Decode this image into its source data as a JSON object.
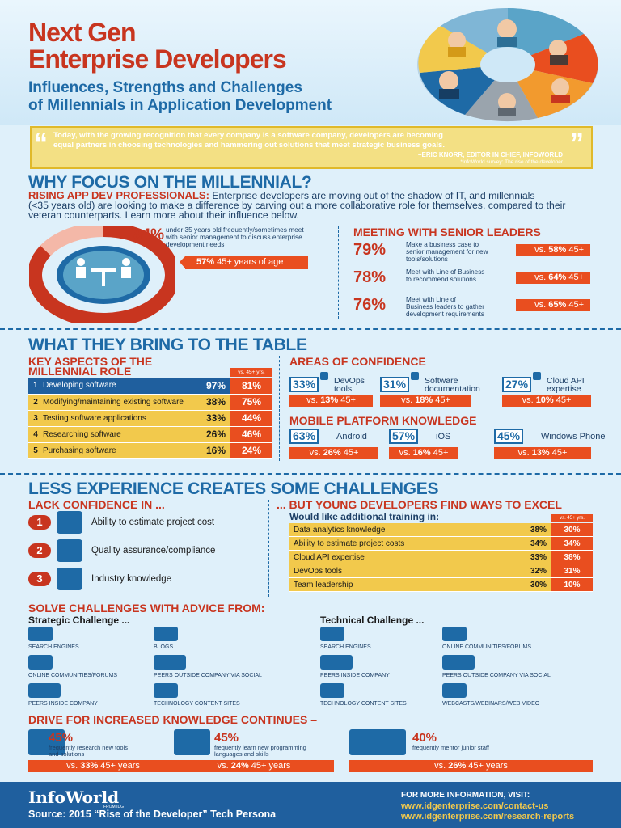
{
  "header": {
    "title_line1": "Next Gen",
    "title_line2": "Enterprise Developers",
    "subtitle_line1": "Influences, Strengths and Challenges",
    "subtitle_line2": "of Millennials in Application Development"
  },
  "quote": {
    "text_line1": "Today, with the growing recognition that every company is a software company, developers are becoming",
    "text_line2": "equal partners in choosing technologies and hammering out solutions that meet strategic business goals.",
    "author": "–ERIC KNORR, EDITOR IN CHIEF, INFOWORLD",
    "source": "*InfoWorld survey: The rise of the developer"
  },
  "why": {
    "title": "WHY FOCUS ON THE MILLENNIAL?",
    "lead": "RISING APP DEV PROFESSIONALS:",
    "text_line1": " Enterprise developers are moving out of the shadow of IT, and millennials",
    "text_line2": "(<35 years old) are looking to make a difference by carving out a more collaborative role for themselves, compared to their",
    "text_line3": "veteran counterparts. Learn more about their influence below.",
    "big_pct": "84%",
    "big_desc_line1": "under 35 years old frequently/sometimes meet",
    "big_desc_line2": "with senior management to discuss enterprise",
    "big_desc_line3": "development needs",
    "big_vs_pct": "57%",
    "big_vs_text": " 45+ years of age",
    "big_pct_value": 0.84
  },
  "senior": {
    "title": "MEETING WITH SENIOR LEADERS",
    "items": [
      {
        "pct": "79%",
        "l1": "Make a business case to",
        "l2": "senior management for new",
        "l3": "tools/solutions",
        "vs": "58%",
        "age": " 45+"
      },
      {
        "pct": "78%",
        "l1": "Meet with Line of Business",
        "l2": "to recommend solutions",
        "l3": "",
        "vs": "64%",
        "age": " 45+"
      },
      {
        "pct": "76%",
        "l1": "Meet with Line of",
        "l2": "Business leaders to gather",
        "l3": "development requirements",
        "vs": "65%",
        "age": " 45+"
      }
    ],
    "vs_prefix": "vs. "
  },
  "table": {
    "title": "WHAT THEY BRING TO THE TABLE",
    "key_title_line1": "KEY ASPECTS OF THE",
    "key_title_line2": "MILLENNIAL ROLE",
    "vs_header": "vs. 45+ yrs.",
    "roles": [
      {
        "n": "1",
        "label": "Developing software",
        "pct": "97%",
        "vs": "81%"
      },
      {
        "n": "2",
        "label": "Modifying/maintaining existing software",
        "pct": "38%",
        "vs": "75%"
      },
      {
        "n": "3",
        "label": "Testing software applications",
        "pct": "33%",
        "vs": "44%"
      },
      {
        "n": "4",
        "label": "Researching software",
        "pct": "26%",
        "vs": "46%"
      },
      {
        "n": "5",
        "label": "Purchasing software",
        "pct": "16%",
        "vs": "24%"
      }
    ],
    "conf_title": "AREAS OF CONFIDENCE",
    "conf": [
      {
        "pct": "33%",
        "l1": "DevOps",
        "l2": "tools",
        "vs": "13%"
      },
      {
        "pct": "31%",
        "l1": "Software",
        "l2": "documentation",
        "vs": "18%"
      },
      {
        "pct": "27%",
        "l1": "Cloud API",
        "l2": "expertise",
        "vs": "10%"
      }
    ],
    "mobile_title": "MOBILE PLATFORM KNOWLEDGE",
    "mobile": [
      {
        "pct": "63%",
        "label": "Android",
        "vs": "26%"
      },
      {
        "pct": "57%",
        "label": "iOS",
        "vs": "16%"
      },
      {
        "pct": "45%",
        "label": "Windows Phone",
        "vs": "13%"
      }
    ],
    "vs_prefix": "vs. ",
    "age_suffix": " 45+"
  },
  "challenges": {
    "title": "LESS EXPERIENCE CREATES SOME CHALLENGES",
    "lack_title": "LACK CONFIDENCE IN ...",
    "lack": [
      {
        "n": "1",
        "label": "Ability to estimate project cost",
        "icon": "calculator-icon"
      },
      {
        "n": "2",
        "label": "Quality assurance/compliance",
        "icon": "checklist-icon"
      },
      {
        "n": "3",
        "label": "Industry knowledge",
        "icon": "head-gear-icon"
      }
    ],
    "excel_title": "... BUT YOUNG DEVELOPERS FIND WAYS TO EXCEL",
    "training_head": "Would like additional training in:",
    "training_vs": "vs. 45+ yrs.",
    "training": [
      {
        "label": "Data analytics knowledge",
        "pct": "38%",
        "vs": "30%"
      },
      {
        "label": "Ability to estimate project costs",
        "pct": "34%",
        "vs": "34%"
      },
      {
        "label": "Cloud API expertise",
        "pct": "33%",
        "vs": "38%"
      },
      {
        "label": "DevOps tools",
        "pct": "32%",
        "vs": "31%"
      },
      {
        "label": "Team leadership",
        "pct": "30%",
        "vs": "10%"
      }
    ]
  },
  "advice": {
    "title": "SOLVE CHALLENGES WITH ADVICE FROM:",
    "strategic_title": "Strategic Challenge ...",
    "strategic": [
      {
        "label": "SEARCH ENGINES",
        "icon": "search-engine-icon"
      },
      {
        "label": "BLOGS",
        "icon": "blog-icon"
      },
      {
        "label": "ONLINE COMMUNITIES/FORUMS",
        "icon": "chat-bubble-icon"
      },
      {
        "label": "PEERS OUTSIDE COMPANY VIA SOCIAL",
        "icon": "peers-social-icon"
      },
      {
        "label": "PEERS INSIDE COMPANY",
        "icon": "peers-icon"
      },
      {
        "label": "TECHNOLOGY CONTENT SITES",
        "icon": "browser-icon"
      }
    ],
    "technical_title": "Technical Challenge ...",
    "technical": [
      {
        "label": "SEARCH ENGINES",
        "icon": "search-engine-icon"
      },
      {
        "label": "ONLINE COMMUNITIES/FORUMS",
        "icon": "chat-bubble-icon"
      },
      {
        "label": "PEERS INSIDE COMPANY",
        "icon": "peers-icon"
      },
      {
        "label": "PEERS OUTSIDE COMPANY VIA SOCIAL",
        "icon": "peers-social-icon"
      },
      {
        "label": "TECHNOLOGY CONTENT SITES",
        "icon": "browser-icon"
      },
      {
        "label": "WEBCASTS/WEBINARS/WEB VIDEO",
        "icon": "video-play-icon"
      }
    ]
  },
  "drive": {
    "title": "DRIVE FOR INCREASED KNOWLEDGE CONTINUES –",
    "items": [
      {
        "pct": "45%",
        "l1": "frequently research new tools",
        "l2": "and solutions",
        "vs": "33%",
        "icon": "telescope-person-icon"
      },
      {
        "pct": "45%",
        "l1": "frequently learn new programming",
        "l2": "languages and skills",
        "vs": "24%",
        "icon": "graduation-cap-icon"
      },
      {
        "pct": "40%",
        "l1": "frequently mentor junior staff",
        "l2": "",
        "vs": "26%",
        "icon": "mentor-icon"
      }
    ],
    "vs_prefix": "vs. ",
    "age_suffix": " 45+ years"
  },
  "footer": {
    "brand": "InfoWorld",
    "brand_sub": "FROM IDG",
    "source": "Source: 2015 “Rise of the Developer” Tech Persona",
    "more_info": "FOR MORE INFORMATION, VISIT:",
    "link1": "www.idgenterprise.com/contact-us",
    "link2": "www.idgenterprise.com/research-reports"
  },
  "colors": {
    "red": "#c8351f",
    "orange": "#e94e1f",
    "blue": "#1e6aa6",
    "yellow": "#f2c94c",
    "navy": "#1f5f9e"
  }
}
